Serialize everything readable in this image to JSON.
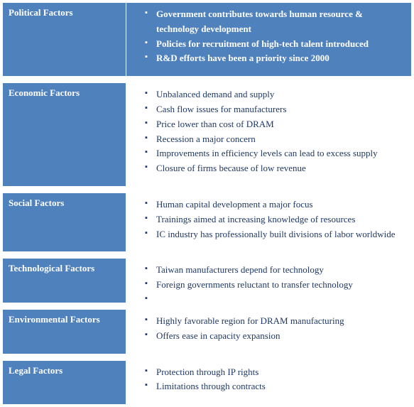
{
  "type": "table",
  "rows": [
    {
      "label": "Political Factors",
      "items": [
        "Government contributes towards human resource & technology development",
        "Policies for recruitment of high-tech talent introduced",
        "R&D efforts have been a priority since 2000"
      ],
      "label_bg": "#4f81bd",
      "label_color": "#ffffff",
      "content_bg": "#4f81bd",
      "content_color": "#ffffff",
      "bullet_color": "#ffffff"
    },
    {
      "label": "Economic Factors",
      "items": [
        "Unbalanced demand and supply",
        "Cash flow issues for manufacturers",
        "Price lower than cost of DRAM",
        "Recession a major concern",
        "Improvements in efficiency levels can lead to excess supply",
        "Closure of firms because of low revenue"
      ],
      "label_bg": "#4f81bd",
      "label_color": "#ffffff",
      "content_bg": "#ffffff",
      "content_color": "#1f3864",
      "bullet_color": "#1f3864"
    },
    {
      "label": "Social Factors",
      "items": [
        "Human capital development a major focus",
        " Trainings aimed at increasing knowledge of resources",
        "IC industry has professionally built divisions of labor worldwide"
      ],
      "label_bg": "#4f81bd",
      "label_color": "#ffffff",
      "content_bg": "#ffffff",
      "content_color": "#1f3864",
      "bullet_color": "#1f3864"
    },
    {
      "label": "Technological Factors",
      "items": [
        "Taiwan manufacturers depend for technology",
        "Foreign governments reluctant to transfer technology",
        ""
      ],
      "label_bg": "#4f81bd",
      "label_color": "#ffffff",
      "content_bg": "#ffffff",
      "content_color": "#1f3864",
      "bullet_color": "#1f3864"
    },
    {
      "label": "Environmental Factors",
      "items": [
        "Highly favorable region for DRAM manufacturing",
        "Offers ease in capacity expansion"
      ],
      "label_bg": "#4f81bd",
      "label_color": "#ffffff",
      "content_bg": "#ffffff",
      "content_color": "#1f3864",
      "bullet_color": "#1f3864"
    },
    {
      "label": "Legal Factors",
      "items": [
        "Protection through IP rights",
        "Limitations through contracts"
      ],
      "label_bg": "#4f81bd",
      "label_color": "#ffffff",
      "content_bg": "#ffffff",
      "content_color": "#1f3864",
      "bullet_color": "#1f3864"
    }
  ]
}
